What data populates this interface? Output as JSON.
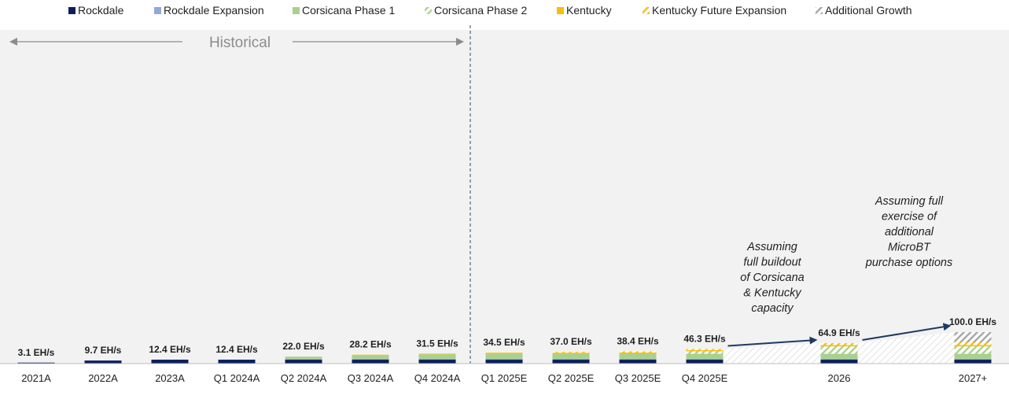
{
  "chart_data": {
    "type": "bar",
    "stacked": true,
    "unit": "EH/s",
    "categories": [
      "2021A",
      "2022A",
      "2023A",
      "Q1 2024A",
      "Q2 2024A",
      "Q3 2024A",
      "Q4 2024A",
      "Q1 2025E",
      "Q2 2025E",
      "Q3 2025E",
      "Q4 2025E",
      "2026",
      "2027+"
    ],
    "totals_labels": [
      "3.1 EH/s",
      "9.7 EH/s",
      "12.4 EH/s",
      "12.4 EH/s",
      "22.0 EH/s",
      "28.2 EH/s",
      "31.5 EH/s",
      "34.5 EH/s",
      "37.0 EH/s",
      "38.4 EH/s",
      "46.3 EH/s",
      "64.9 EH/s",
      "100.0 EH/s"
    ],
    "totals": [
      3.1,
      9.7,
      12.4,
      12.4,
      22.0,
      28.2,
      31.5,
      34.5,
      37.0,
      38.4,
      46.3,
      64.9,
      100.0
    ],
    "series": [
      {
        "name": "Rockdale",
        "color": "#0c1f5c",
        "pattern": "solid",
        "values": [
          3.1,
          9.7,
          12.4,
          12.4,
          12.4,
          12.4,
          12.4,
          12.4,
          12.4,
          12.4,
          12.4,
          12.4,
          12.4
        ]
      },
      {
        "name": "Rockdale Expansion",
        "color": "#8fa9dc",
        "pattern": "solid",
        "values": [
          0,
          0,
          0,
          0,
          2.2,
          2.7,
          2.7,
          2.7,
          2.7,
          2.7,
          2.7,
          2.7,
          2.7
        ]
      },
      {
        "name": "Corsicana Phase 1",
        "color": "#a9d18e",
        "pattern": "solid",
        "values": [
          0,
          0,
          0,
          0,
          7.4,
          12.1,
          14.4,
          16.0,
          16.0,
          16.0,
          16.0,
          16.0,
          16.0
        ]
      },
      {
        "name": "Corsicana Phase 2",
        "color": "#a9d18e",
        "pattern": "hatch",
        "values": [
          0,
          0,
          0,
          0,
          0,
          0,
          0,
          0,
          0,
          0,
          7.8,
          23.8,
          23.8
        ]
      },
      {
        "name": "Kentucky",
        "color": "#fbbd08",
        "pattern": "solid",
        "values": [
          0,
          0,
          0,
          0,
          0,
          1.0,
          2.0,
          3.4,
          3.4,
          3.9,
          3.9,
          3.9,
          3.9
        ]
      },
      {
        "name": "Kentucky Future Expansion",
        "color": "#fbbd08",
        "pattern": "hatch",
        "values": [
          0,
          0,
          0,
          0,
          0,
          0,
          0,
          0,
          2.5,
          3.4,
          3.5,
          6.1,
          8.6
        ]
      },
      {
        "name": "Additional Growth",
        "color": "#a6a6a6",
        "pattern": "hatch",
        "values": [
          0,
          0,
          0,
          0,
          0,
          0,
          0,
          0,
          0,
          0,
          0,
          0,
          32.6
        ]
      }
    ],
    "ylim": [
      0,
      100
    ],
    "legend_position": "top",
    "historical_label": "Historical",
    "annotations": [
      {
        "text_lines": [
          "Assuming",
          "full buildout",
          "of Corsicana",
          "& Kentucky",
          "capacity"
        ]
      },
      {
        "text_lines": [
          "Assuming full",
          "exercise of",
          "additional",
          "MicroBT",
          "purchase options"
        ]
      }
    ]
  }
}
